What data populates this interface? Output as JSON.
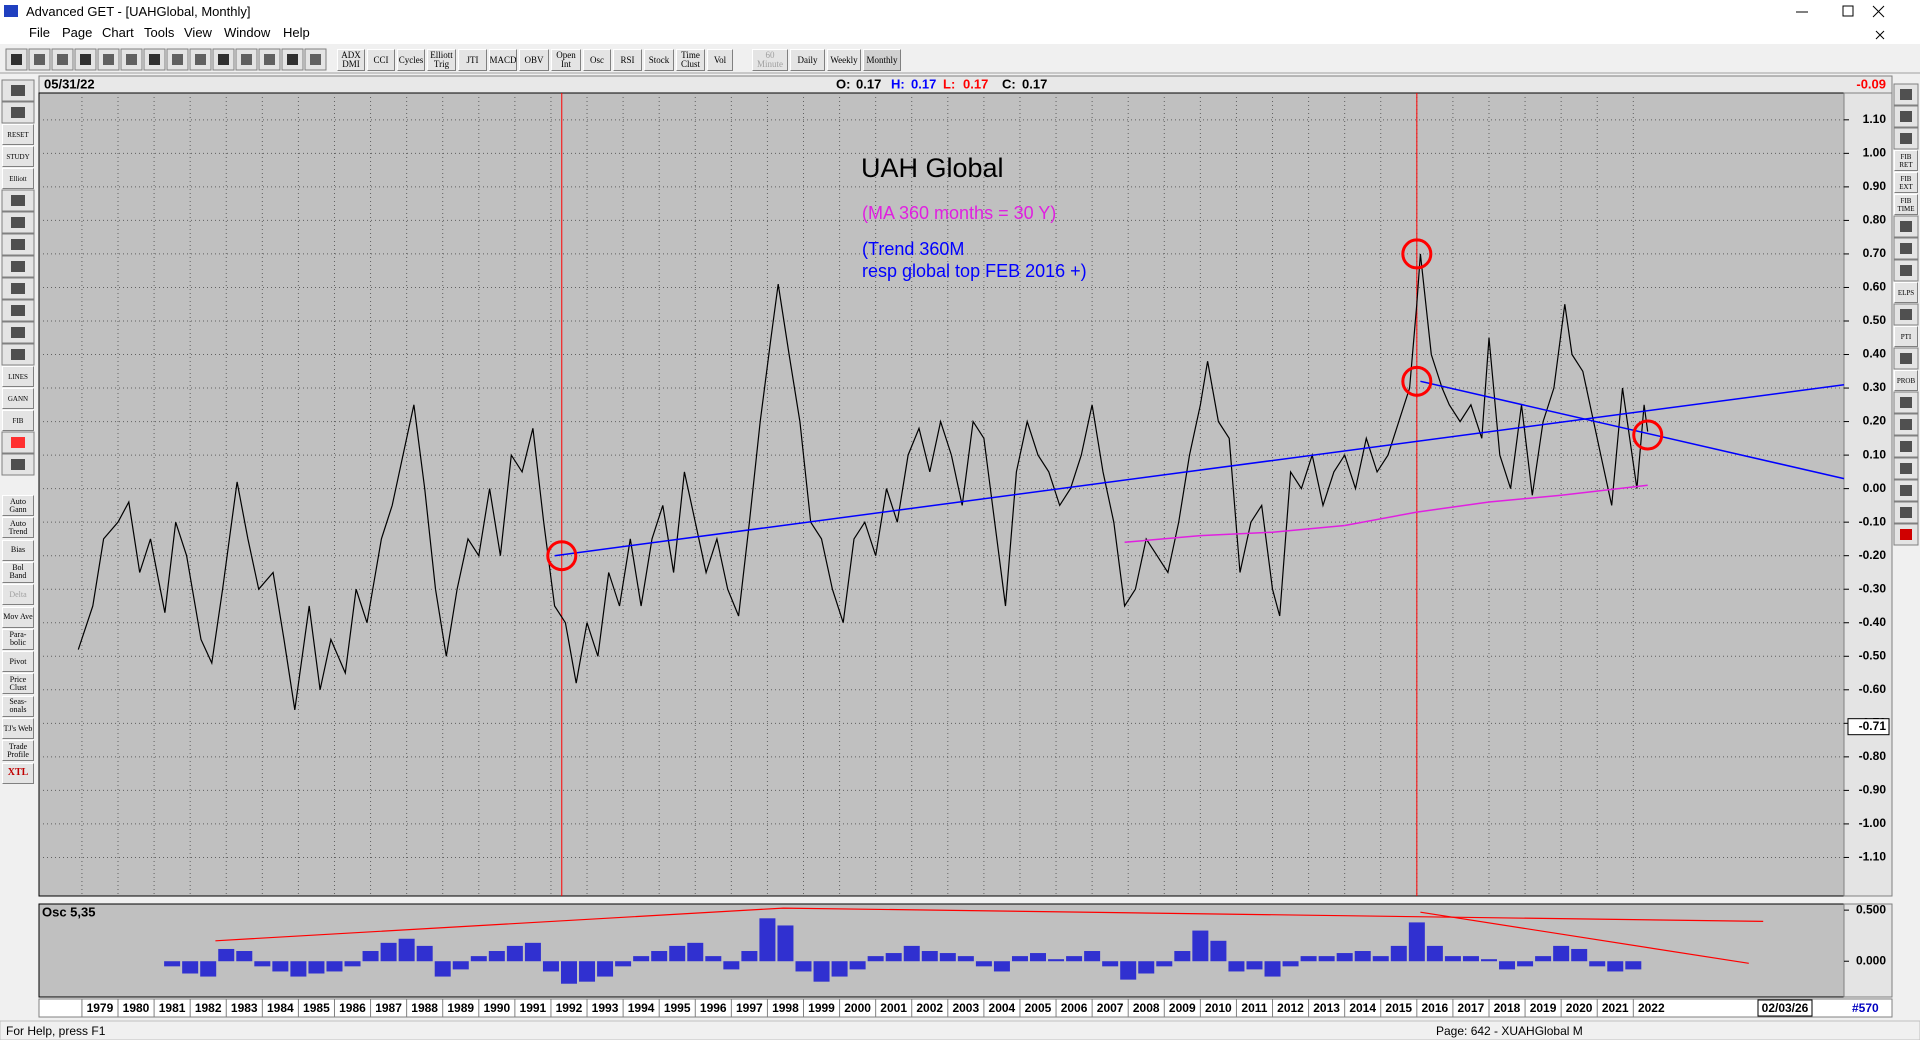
{
  "window": {
    "title": "Advanced GET - [UAHGlobal, Monthly]"
  },
  "menu": [
    "File",
    "Page",
    "Chart",
    "Tools",
    "View",
    "Window",
    "Help"
  ],
  "toolbar": [
    "ADX DMI",
    "CCI",
    "Cycles",
    "Elliott Trig",
    "JTI",
    "MACD",
    "OBV",
    "Open Int",
    "Osc",
    "RSI",
    "Stock",
    "Time Clust",
    "Vol",
    "60 Minute",
    "Daily",
    "Weekly",
    "Monthly"
  ],
  "left_tools": {
    "icons": [
      "RESET",
      "STUDY",
      "Elliott",
      "LINES",
      "GANN",
      "FIB"
    ],
    "studies": [
      "Auto Gann",
      "Auto Trend",
      "Bias",
      "Bol Band",
      "Delta",
      "Mov Ave",
      "Para-bolic",
      "Pivot",
      "Price Clust",
      "Seas-onals",
      "TJ's Web",
      "Trade Profile",
      "XTL"
    ]
  },
  "right_tools": [
    "FIB RET",
    "FIB EXT",
    "FIB TIME",
    "ELPS",
    "PTI",
    "PROB"
  ],
  "status": {
    "help": "For Help, press F1",
    "page": "Page: 642 - XUAHGlobal M"
  },
  "chart_data": {
    "type": "line",
    "header": {
      "date": "05/31/22",
      "ohlc": [
        {
          "label": "O:",
          "value": 0.17,
          "color": "#000000"
        },
        {
          "label": "H:",
          "value": 0.17,
          "color": "#0000ff"
        },
        {
          "label": "L:",
          "value": 0.17,
          "color": "#ff0000"
        },
        {
          "label": "C:",
          "value": 0.17,
          "color": "#000000"
        }
      ],
      "last_change": -0.09
    },
    "title": "UAH Global",
    "annotations": [
      {
        "text": "(MA 360 months = 30 Y)",
        "color": "#e020e0"
      },
      {
        "text": "(Trend 360M",
        "color": "#0000ff"
      },
      {
        "text": "resp global top FEB 2016 +)",
        "color": "#0000ff"
      }
    ],
    "xlim": [
      1977.81,
      2027.84
    ],
    "xticks": [
      1979,
      1980,
      1981,
      1982,
      1983,
      1984,
      1985,
      1986,
      1987,
      1988,
      1989,
      1990,
      1991,
      1992,
      1993,
      1994,
      1995,
      1996,
      1997,
      1998,
      1999,
      2000,
      2001,
      2002,
      2003,
      2004,
      2005,
      2006,
      2007,
      2008,
      2009,
      2010,
      2011,
      2012,
      2013,
      2014,
      2015,
      2016,
      2017,
      2018,
      2019,
      2020,
      2021,
      2022
    ],
    "ylim": [
      -1.215,
      1.18
    ],
    "yticks": [
      {
        "value": 1.1,
        "label": "1.10"
      },
      {
        "value": 1,
        "label": "1.00"
      },
      {
        "value": 0.9,
        "label": "0.90"
      },
      {
        "value": 0.8,
        "label": "0.80"
      },
      {
        "value": 0.7,
        "label": "0.70"
      },
      {
        "value": 0.6,
        "label": "0.60"
      },
      {
        "value": 0.5,
        "label": "0.50"
      },
      {
        "value": 0.4,
        "label": "0.40"
      },
      {
        "value": 0.3,
        "label": "0.30"
      },
      {
        "value": 0.2,
        "label": "0.20"
      },
      {
        "value": 0.1,
        "label": "0.10"
      },
      {
        "value": 0,
        "label": "0.00"
      },
      {
        "value": -0.1,
        "label": "-0.10"
      },
      {
        "value": -0.2,
        "label": "-0.20"
      },
      {
        "value": -0.3,
        "label": "-0.30"
      },
      {
        "value": -0.4,
        "label": "-0.40"
      },
      {
        "value": -0.5,
        "label": "-0.50"
      },
      {
        "value": -0.6,
        "label": "-0.60"
      },
      {
        "value": -0.7,
        "label": "-0.70"
      },
      {
        "value": -0.8,
        "label": "-0.80"
      },
      {
        "value": -0.9,
        "label": "-0.90"
      },
      {
        "value": -1,
        "label": "-1.00"
      },
      {
        "value": -1.1,
        "label": "-1.10"
      }
    ],
    "grid": true,
    "price_marker": -0.71,
    "end_date": "02/03/26",
    "bar_count": "#570",
    "series": [
      {
        "color": "#000000",
        "x": [
          1978.9,
          1979.3,
          1979.6,
          1980.0,
          1980.3,
          1980.6,
          1980.9,
          1981.3,
          1981.6,
          1981.9,
          1982.3,
          1982.6,
          1982.9,
          1983.3,
          1983.6,
          1983.9,
          1984.3,
          1984.6,
          1984.9,
          1985.3,
          1985.6,
          1985.9,
          1986.3,
          1986.6,
          1986.9,
          1987.3,
          1987.6,
          1987.9,
          1988.2,
          1988.5,
          1988.8,
          1989.1,
          1989.4,
          1989.7,
          1990.0,
          1990.3,
          1990.6,
          1990.9,
          1991.2,
          1991.5,
          1991.8,
          1992.1,
          1992.4,
          1992.7,
          1993.0,
          1993.3,
          1993.6,
          1993.9,
          1994.2,
          1994.5,
          1994.8,
          1995.1,
          1995.4,
          1995.7,
          1996.0,
          1996.3,
          1996.6,
          1996.9,
          1997.2,
          1997.5,
          1997.8,
          1998.1,
          1998.3,
          1998.6,
          1998.9,
          1999.2,
          1999.5,
          1999.8,
          2000.1,
          2000.4,
          2000.7,
          2001.0,
          2001.3,
          2001.6,
          2001.9,
          2002.2,
          2002.5,
          2002.8,
          2003.1,
          2003.4,
          2003.7,
          2004.0,
          2004.3,
          2004.6,
          2004.9,
          2005.2,
          2005.5,
          2005.8,
          2006.1,
          2006.4,
          2006.7,
          2007.0,
          2007.3,
          2007.6,
          2007.9,
          2008.2,
          2008.5,
          2008.8,
          2009.1,
          2009.4,
          2009.7,
          2010.0,
          2010.2,
          2010.5,
          2010.8,
          2011.1,
          2011.4,
          2011.7,
          2012.0,
          2012.2,
          2012.5,
          2012.8,
          2013.1,
          2013.4,
          2013.7,
          2014.0,
          2014.3,
          2014.6,
          2014.9,
          2015.2,
          2015.5,
          2015.8,
          2016.0,
          2016.1,
          2016.4,
          2016.7,
          2016.9,
          2017.2,
          2017.5,
          2017.8,
          2018.0,
          2018.3,
          2018.6,
          2018.9,
          2019.2,
          2019.5,
          2019.8,
          2020.1,
          2020.3,
          2020.6,
          2020.9,
          2021.1,
          2021.4,
          2021.7,
          2021.9,
          2022.1,
          2022.3,
          2022.4
        ],
        "values": [
          -0.48,
          -0.35,
          -0.15,
          -0.1,
          -0.04,
          -0.25,
          -0.15,
          -0.37,
          -0.1,
          -0.2,
          -0.45,
          -0.52,
          -0.3,
          0.02,
          -0.15,
          -0.3,
          -0.25,
          -0.45,
          -0.66,
          -0.35,
          -0.6,
          -0.45,
          -0.55,
          -0.3,
          -0.4,
          -0.15,
          -0.05,
          0.1,
          0.25,
          0,
          -0.3,
          -0.5,
          -0.3,
          -0.15,
          -0.2,
          0,
          -0.2,
          0.1,
          0.05,
          0.18,
          -0.1,
          -0.35,
          -0.4,
          -0.58,
          -0.4,
          -0.5,
          -0.25,
          -0.35,
          -0.15,
          -0.35,
          -0.15,
          -0.05,
          -0.25,
          0.05,
          -0.1,
          -0.25,
          -0.15,
          -0.3,
          -0.38,
          -0.1,
          0.2,
          0.45,
          0.61,
          0.4,
          0.2,
          -0.1,
          -0.15,
          -0.3,
          -0.4,
          -0.15,
          -0.1,
          -0.2,
          0,
          -0.1,
          0.1,
          0.18,
          0.05,
          0.2,
          0.1,
          -0.05,
          0.2,
          0.15,
          -0.1,
          -0.35,
          0.05,
          0.2,
          0.1,
          0.05,
          -0.05,
          0,
          0.1,
          0.25,
          0.05,
          -0.1,
          -0.35,
          -0.3,
          -0.15,
          -0.2,
          -0.25,
          -0.1,
          0.1,
          0.25,
          0.38,
          0.2,
          0.15,
          -0.25,
          -0.1,
          -0.05,
          -0.3,
          -0.38,
          0.05,
          0,
          0.1,
          -0.05,
          0.05,
          0.1,
          0,
          0.15,
          0.05,
          0.1,
          0.2,
          0.3,
          0.55,
          0.7,
          0.4,
          0.3,
          0.25,
          0.2,
          0.25,
          0.15,
          0.45,
          0.1,
          0,
          0.25,
          -0.02,
          0.2,
          0.3,
          0.55,
          0.4,
          0.35,
          0.2,
          0.1,
          -0.05,
          0.3,
          0.15,
          0,
          0.25,
          0.17
        ]
      },
      {
        "color": "#e020e0",
        "x": [
          2007.9,
          2010,
          2012,
          2014,
          2016,
          2018,
          2020,
          2022.4
        ],
        "values": [
          -0.16,
          -0.14,
          -0.13,
          -0.11,
          -0.07,
          -0.04,
          -0.02,
          0.01
        ]
      },
      {
        "color": "#0000ff",
        "x": [
          1992.1,
          2027.84
        ],
        "values": [
          -0.2,
          0.31
        ]
      },
      {
        "color": "#0000ff",
        "x": [
          2016.1,
          2027.84
        ],
        "values": [
          0.32,
          0.03
        ]
      }
    ],
    "cycle_lines": {
      "color": "#ff0000",
      "x": [
        1992.3,
        2016.0
      ]
    },
    "markers": {
      "color": "#ff0000",
      "x": [
        1992.3,
        2016.0,
        2016.0,
        2022.4
      ],
      "values": [
        -0.2,
        0.7,
        0.32,
        0.16
      ]
    },
    "oscillator": {
      "label": "Osc 5,35",
      "color": "#3030d0",
      "ylim": [
        -0.35,
        0.56
      ],
      "yticks": [
        {
          "value": 0.5,
          "label": "0.500"
        },
        {
          "value": 0,
          "label": "0.000"
        }
      ],
      "x": [
        1981.5,
        1982,
        1982.5,
        1983,
        1983.5,
        1984,
        1984.5,
        1985,
        1985.5,
        1986,
        1986.5,
        1987,
        1987.5,
        1988,
        1988.5,
        1989,
        1989.5,
        1990,
        1990.5,
        1991,
        1991.5,
        1992,
        1992.5,
        1993,
        1993.5,
        1994,
        1994.5,
        1995,
        1995.5,
        1996,
        1996.5,
        1997,
        1997.5,
        1998,
        1998.5,
        1999,
        1999.5,
        2000,
        2000.5,
        2001,
        2001.5,
        2002,
        2002.5,
        2003,
        2003.5,
        2004,
        2004.5,
        2005,
        2005.5,
        2006,
        2006.5,
        2007,
        2007.5,
        2008,
        2008.5,
        2009,
        2009.5,
        2010,
        2010.5,
        2011,
        2011.5,
        2012,
        2012.5,
        2013,
        2013.5,
        2014,
        2014.5,
        2015,
        2015.5,
        2016,
        2016.5,
        2017,
        2017.5,
        2018,
        2018.5,
        2019,
        2019.5,
        2020,
        2020.5,
        2021,
        2021.5,
        2022
      ],
      "values": [
        -0.05,
        -0.12,
        -0.15,
        0.12,
        0.1,
        -0.05,
        -0.1,
        -0.15,
        -0.12,
        -0.1,
        -0.05,
        0.1,
        0.18,
        0.22,
        0.15,
        -0.15,
        -0.08,
        0.05,
        0.1,
        0.15,
        0.18,
        -0.1,
        -0.22,
        -0.2,
        -0.15,
        -0.05,
        0.05,
        0.1,
        0.15,
        0.18,
        0.05,
        -0.08,
        0.1,
        0.42,
        0.35,
        -0.1,
        -0.2,
        -0.15,
        -0.08,
        0.05,
        0.08,
        0.15,
        0.1,
        0.08,
        0.05,
        -0.05,
        -0.1,
        0.05,
        0.08,
        0.02,
        0.05,
        0.1,
        -0.05,
        -0.18,
        -0.12,
        -0.05,
        0.1,
        0.3,
        0.2,
        -0.1,
        -0.08,
        -0.15,
        -0.05,
        0.05,
        0.05,
        0.08,
        0.1,
        0.05,
        0.15,
        0.38,
        0.15,
        0.05,
        0.05,
        0.02,
        -0.08,
        -0.05,
        0.05,
        0.15,
        0.12,
        -0.05,
        -0.1,
        -0.08
      ],
      "lines": [
        {
          "color": "#ff0000",
          "x": [
            1982.7,
            1998.44,
            2025.6
          ],
          "values": [
            0.2,
            0.52,
            0.39
          ]
        },
        {
          "color": "#ff0000",
          "x": [
            2016.1,
            2025.2
          ],
          "values": [
            0.48,
            -0.02
          ]
        }
      ]
    }
  }
}
